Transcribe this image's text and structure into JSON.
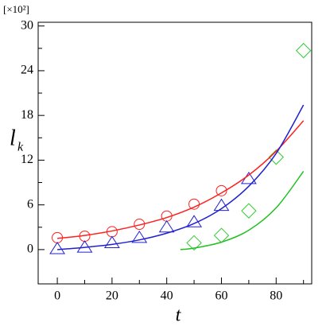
{
  "chart_data": {
    "type": "scatter",
    "ylabel": "l",
    "ylabel_sub": "k",
    "xlabel": "t",
    "y_multiplier": "[×10²]",
    "xlim": [
      -7,
      93
    ],
    "ylim": [
      -4.6,
      30.5
    ],
    "xticks": [
      0,
      20,
      40,
      60,
      80
    ],
    "xminorticks": [
      10,
      30,
      50,
      70,
      90
    ],
    "yticks": [
      0,
      6,
      12,
      18,
      24,
      30
    ],
    "yminorticks": [
      3,
      9,
      15,
      21,
      27
    ],
    "series": [
      {
        "mode": "markers",
        "marker": "circle",
        "color": "#ff2020",
        "x": [
          0,
          10,
          20,
          30,
          40,
          50,
          60
        ],
        "values": [
          1.6,
          1.8,
          2.4,
          3.4,
          4.5,
          6.1,
          7.9
        ]
      },
      {
        "mode": "markers",
        "marker": "triangle",
        "color": "#2020d0",
        "x": [
          0,
          10,
          20,
          30,
          40,
          50,
          60,
          70
        ],
        "values": [
          0.1,
          0.3,
          0.9,
          1.6,
          3.0,
          3.7,
          5.9,
          9.5
        ]
      },
      {
        "mode": "markers",
        "marker": "diamond",
        "color": "#30cc30",
        "x": [
          50,
          60,
          70,
          80,
          90
        ],
        "values": [
          0.9,
          1.9,
          5.2,
          12.4,
          26.7
        ]
      },
      {
        "mode": "lines",
        "color": "#ff2020",
        "x": [
          0,
          10,
          20,
          30,
          40,
          50,
          60,
          70,
          80,
          90
        ],
        "values": [
          1.5,
          1.9,
          2.5,
          3.3,
          4.3,
          5.7,
          7.6,
          10.0,
          13.2,
          17.3
        ]
      },
      {
        "mode": "lines",
        "color": "#2020d0",
        "x": [
          0,
          10,
          20,
          30,
          40,
          50,
          60,
          70,
          80,
          90
        ],
        "values": [
          0,
          0.3,
          0.7,
          1.3,
          2.2,
          3.5,
          5.5,
          8.5,
          12.9,
          19.4
        ]
      },
      {
        "mode": "lines",
        "color": "#20c020",
        "x": [
          45,
          50,
          60,
          70,
          80,
          90
        ],
        "values": [
          0,
          0.2,
          1.0,
          2.6,
          5.6,
          10.5
        ]
      }
    ]
  }
}
